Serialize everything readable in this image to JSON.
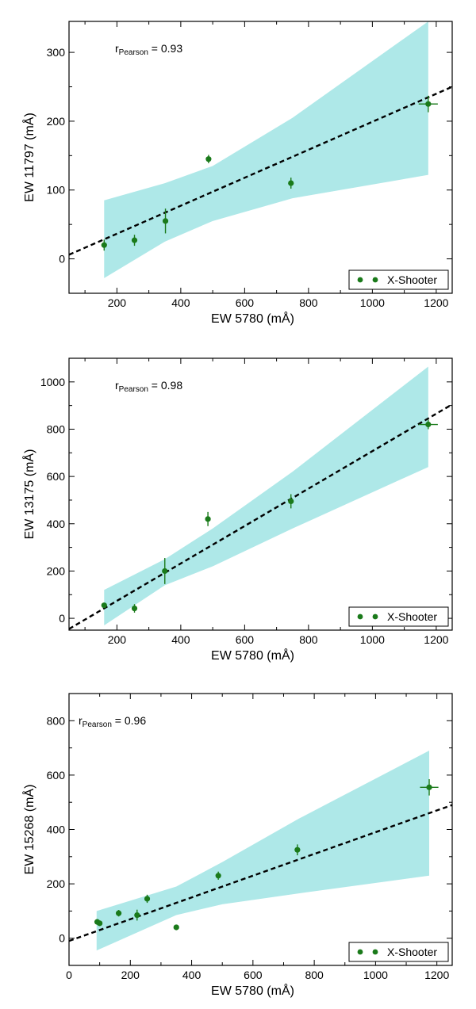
{
  "figure": {
    "layout": "three stacked panels",
    "colors": {
      "band": "#aee8e8",
      "points": "#1a7a1a",
      "fit": "#000000",
      "frame": "#000000"
    }
  },
  "chart_data": [
    {
      "type": "scatter",
      "panel": "top",
      "xlabel": "EW 5780 (mÅ)",
      "ylabel": "EW 11797 (mÅ)",
      "xlim": [
        50,
        1250
      ],
      "ylim": [
        -50,
        345
      ],
      "xticks": [
        200,
        400,
        600,
        800,
        1000,
        1200
      ],
      "yticks": [
        0,
        100,
        200,
        300
      ],
      "annotation": {
        "prefix": "r",
        "subscript": "Pearson",
        "text": " = 0.93"
      },
      "legend": {
        "label": "X-Shooter",
        "placement": "bottom-right"
      },
      "points": [
        {
          "x": 160,
          "y": 20,
          "yerr": 8,
          "xerr": 0
        },
        {
          "x": 255,
          "y": 27,
          "yerr": 8,
          "xerr": 0
        },
        {
          "x": 352,
          "y": 55,
          "yerr": 18,
          "xerr": 0
        },
        {
          "x": 487,
          "y": 145,
          "yerr": 6,
          "xerr": 0
        },
        {
          "x": 745,
          "y": 110,
          "yerr": 8,
          "xerr": 0
        },
        {
          "x": 1175,
          "y": 225,
          "yerr": 12,
          "xerr": 30
        }
      ],
      "fit_line": {
        "x": [
          50,
          1250
        ],
        "y": [
          6,
          250
        ]
      },
      "band": {
        "upper": [
          [
            160,
            85
          ],
          [
            350,
            110
          ],
          [
            500,
            135
          ],
          [
            750,
            205
          ],
          [
            1175,
            345
          ]
        ],
        "lower": [
          [
            160,
            -28
          ],
          [
            350,
            25
          ],
          [
            500,
            55
          ],
          [
            750,
            88
          ],
          [
            1175,
            122
          ]
        ]
      }
    },
    {
      "type": "scatter",
      "panel": "middle",
      "xlabel": "EW 5780 (mÅ)",
      "ylabel": "EW 13175 (mÅ)",
      "xlim": [
        50,
        1250
      ],
      "ylim": [
        -50,
        1100
      ],
      "xticks": [
        200,
        400,
        600,
        800,
        1000,
        1200
      ],
      "yticks": [
        0,
        200,
        400,
        600,
        800,
        1000
      ],
      "annotation": {
        "prefix": "r",
        "subscript": "Pearson",
        "text": " = 0.98"
      },
      "legend": {
        "label": "X-Shooter",
        "placement": "bottom-right"
      },
      "points": [
        {
          "x": 160,
          "y": 55,
          "yerr": 8,
          "xerr": 0
        },
        {
          "x": 255,
          "y": 42,
          "yerr": 18,
          "xerr": 0
        },
        {
          "x": 350,
          "y": 200,
          "yerr": 55,
          "xerr": 0
        },
        {
          "x": 485,
          "y": 420,
          "yerr": 30,
          "xerr": 0
        },
        {
          "x": 745,
          "y": 495,
          "yerr": 30,
          "xerr": 0
        },
        {
          "x": 1175,
          "y": 820,
          "yerr": 20,
          "xerr": 30
        }
      ],
      "fit_line": {
        "x": [
          50,
          1250
        ],
        "y": [
          -45,
          905
        ]
      },
      "band": {
        "upper": [
          [
            160,
            120
          ],
          [
            350,
            250
          ],
          [
            500,
            380
          ],
          [
            750,
            620
          ],
          [
            1175,
            1065
          ]
        ],
        "lower": [
          [
            160,
            -30
          ],
          [
            350,
            140
          ],
          [
            500,
            220
          ],
          [
            750,
            380
          ],
          [
            1175,
            640
          ]
        ]
      }
    },
    {
      "type": "scatter",
      "panel": "bottom",
      "xlabel": "EW 5780 (mÅ)",
      "ylabel": "EW 15268 (mÅ)",
      "xlim": [
        0,
        1250
      ],
      "ylim": [
        -100,
        900
      ],
      "xticks": [
        0,
        200,
        400,
        600,
        800,
        1000,
        1200
      ],
      "yticks": [
        0,
        200,
        400,
        600,
        800
      ],
      "annotation": {
        "prefix": "r",
        "subscript": "Pearson",
        "text": " = 0.96"
      },
      "legend": {
        "label": "X-Shooter",
        "placement": "bottom-right"
      },
      "points": [
        {
          "x": 92,
          "y": 60,
          "yerr": 10,
          "xerr": 0
        },
        {
          "x": 100,
          "y": 55,
          "yerr": 10,
          "xerr": 0
        },
        {
          "x": 162,
          "y": 92,
          "yerr": 12,
          "xerr": 0
        },
        {
          "x": 222,
          "y": 85,
          "yerr": 20,
          "xerr": 0
        },
        {
          "x": 255,
          "y": 145,
          "yerr": 15,
          "xerr": 0
        },
        {
          "x": 350,
          "y": 40,
          "yerr": 5,
          "xerr": 0
        },
        {
          "x": 487,
          "y": 230,
          "yerr": 15,
          "xerr": 0
        },
        {
          "x": 745,
          "y": 325,
          "yerr": 20,
          "xerr": 0
        },
        {
          "x": 1175,
          "y": 555,
          "yerr": 30,
          "xerr": 30
        }
      ],
      "fit_line": {
        "x": [
          0,
          1250
        ],
        "y": [
          -10,
          490
        ]
      },
      "band": {
        "upper": [
          [
            90,
            100
          ],
          [
            350,
            190
          ],
          [
            500,
            280
          ],
          [
            750,
            440
          ],
          [
            1175,
            690
          ]
        ],
        "lower": [
          [
            90,
            -45
          ],
          [
            350,
            85
          ],
          [
            500,
            125
          ],
          [
            750,
            165
          ],
          [
            1175,
            230
          ]
        ]
      }
    }
  ]
}
